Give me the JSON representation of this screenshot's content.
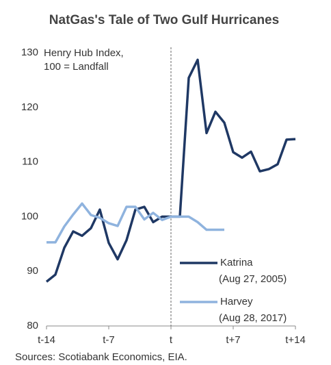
{
  "chart_data": {
    "type": "line",
    "title": "NatGas's Tale of Two Gulf Hurricanes",
    "ylabel": [
      "Henry Hub Index,",
      "100 = Landfall"
    ],
    "source": "Sources: Scotiabank Economics, EIA.",
    "xlim": [
      -14,
      14
    ],
    "xticks": [
      {
        "value": -14,
        "label": "t-14"
      },
      {
        "value": -7,
        "label": "t-7"
      },
      {
        "value": 0,
        "label": "t"
      },
      {
        "value": 7,
        "label": "t+7"
      },
      {
        "value": 14,
        "label": "t+14"
      }
    ],
    "ylim": [
      80,
      130
    ],
    "yticks": [
      80,
      90,
      100,
      110,
      120,
      130
    ],
    "vline": 0,
    "series": [
      {
        "name": "Katrina",
        "date_label": "(Aug 27, 2005)",
        "color": "#1f3864",
        "x": [
          -14,
          -13,
          -12,
          -11,
          -10,
          -9,
          -8,
          -7,
          -6,
          -5,
          -4,
          -3,
          -2,
          -1,
          0,
          1,
          2,
          3,
          4,
          5,
          6,
          7,
          8,
          9,
          10,
          11,
          12,
          13,
          14
        ],
        "values": [
          88.1,
          89.4,
          94.3,
          97.3,
          96.5,
          97.9,
          101.3,
          95.2,
          92.2,
          95.7,
          101.3,
          101.8,
          99.0,
          100,
          100,
          100,
          125.4,
          128.7,
          115.3,
          119.2,
          117.2,
          111.8,
          110.8,
          111.9,
          108.3,
          108.7,
          109.6,
          114.1,
          114.2
        ]
      },
      {
        "name": "Harvey",
        "date_label": "(Aug 28, 2017)",
        "color": "#8fb3de",
        "x": [
          -14,
          -13,
          -12,
          -11,
          -10,
          -9,
          -8,
          -7,
          -6,
          -5,
          -4,
          -3,
          -2,
          -1,
          0,
          1,
          2,
          3,
          4,
          5,
          6
        ],
        "values": [
          95.3,
          95.3,
          98.2,
          100.4,
          102.4,
          100.3,
          99.8,
          98.8,
          98.3,
          101.8,
          101.8,
          99.5,
          100.7,
          99.4,
          100,
          100,
          100,
          99,
          97.6,
          97.6,
          97.6
        ]
      }
    ]
  }
}
